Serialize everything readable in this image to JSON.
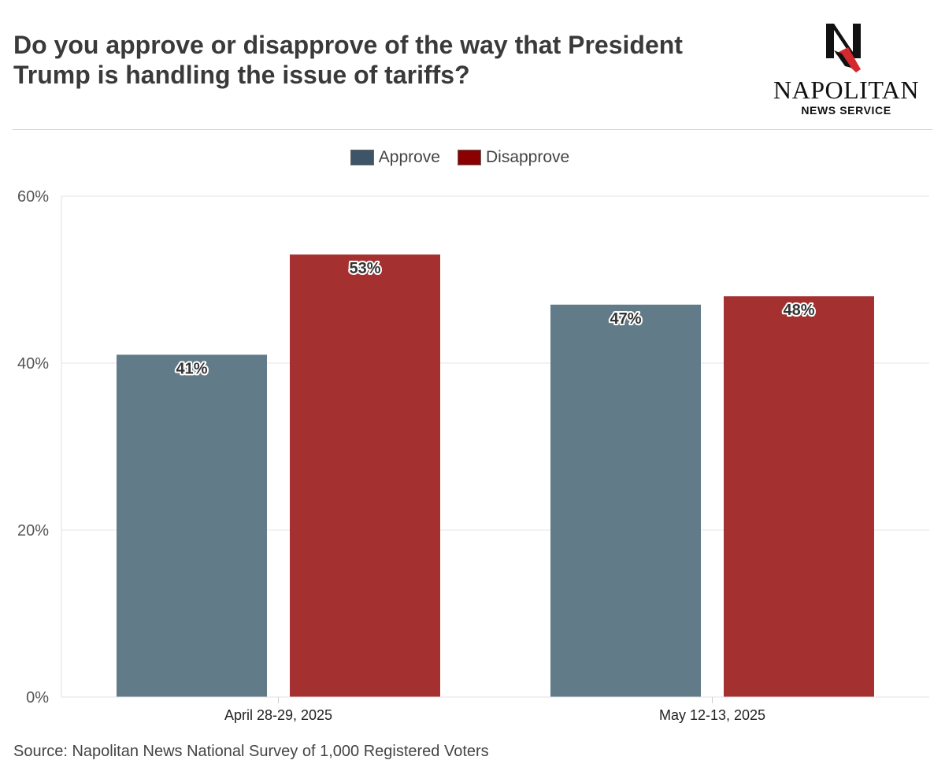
{
  "header": {
    "title": "Do you approve or disapprove of the way that President Trump is handling the issue of tariffs?"
  },
  "logo": {
    "mark": "N",
    "name": "NAPOLITAN",
    "sub": "NEWS SERVICE"
  },
  "footer": {
    "source": "Source: Napolitan News National Survey of 1,000 Registered Voters"
  },
  "colors": {
    "approve": "#627b88",
    "disapprove": "#a53030",
    "approve_legend": "#3d5566",
    "disapprove_legend": "#8b0000",
    "logo_accent": "#d42a2f"
  },
  "chart_data": {
    "type": "bar",
    "categories": [
      "April 28-29, 2025",
      "May 12-13, 2025"
    ],
    "series": [
      {
        "name": "Approve",
        "values": [
          41,
          47
        ],
        "labels": [
          "41%",
          "47%"
        ]
      },
      {
        "name": "Disapprove",
        "values": [
          53,
          48
        ],
        "labels": [
          "53%",
          "48%"
        ]
      }
    ],
    "ylim": [
      0,
      60
    ],
    "yticks": [
      0,
      20,
      40,
      60
    ],
    "ytick_labels": [
      "0%",
      "20%",
      "40%",
      "60%"
    ],
    "grid": true,
    "legend_position": "top-center"
  }
}
